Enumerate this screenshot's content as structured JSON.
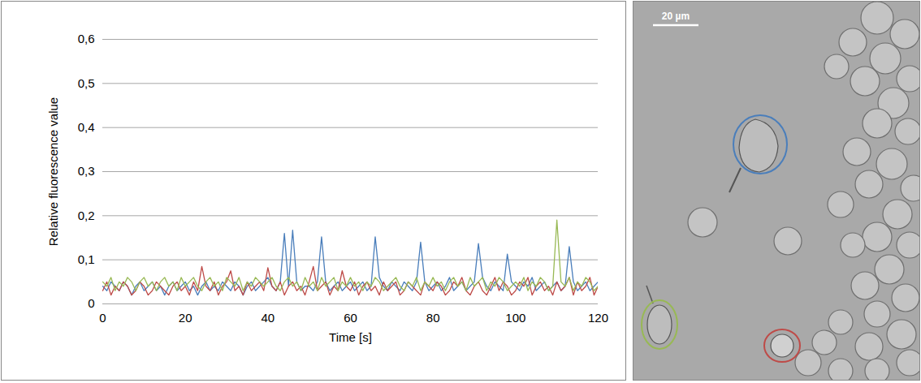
{
  "chart_data": {
    "type": "line",
    "x_label": "Time [s]",
    "y_label": "Relative fluorescence value",
    "x": [
      0,
      1,
      2,
      3,
      4,
      5,
      6,
      7,
      8,
      9,
      10,
      11,
      12,
      13,
      14,
      15,
      16,
      17,
      18,
      19,
      20,
      21,
      22,
      23,
      24,
      25,
      26,
      27,
      28,
      29,
      30,
      31,
      32,
      33,
      34,
      35,
      36,
      37,
      38,
      39,
      40,
      41,
      42,
      43,
      44,
      45,
      46,
      47,
      48,
      49,
      50,
      51,
      52,
      53,
      54,
      55,
      56,
      57,
      58,
      59,
      60,
      61,
      62,
      63,
      64,
      65,
      66,
      67,
      68,
      69,
      70,
      71,
      72,
      73,
      74,
      75,
      76,
      77,
      78,
      79,
      80,
      81,
      82,
      83,
      84,
      85,
      86,
      87,
      88,
      89,
      90,
      91,
      92,
      93,
      94,
      95,
      96,
      97,
      98,
      99,
      100,
      101,
      102,
      103,
      104,
      105,
      106,
      107,
      108,
      109,
      110,
      111,
      112,
      113,
      114,
      115,
      116,
      117,
      118,
      119,
      120
    ],
    "series": [
      {
        "color": "#4a7ebb",
        "values": [
          0.04,
          0.03,
          0.05,
          0.04,
          0.03,
          0.05,
          0.04,
          0.02,
          0.04,
          0.05,
          0.03,
          0.04,
          0.05,
          0.03,
          0.04,
          0.02,
          0.04,
          0.05,
          0.03,
          0.04,
          0.05,
          0.03,
          0.04,
          0.02,
          0.04,
          0.05,
          0.03,
          0.04,
          0.03,
          0.05,
          0.04,
          0.03,
          0.05,
          0.04,
          0.02,
          0.04,
          0.05,
          0.03,
          0.04,
          0.05,
          0.06,
          0.04,
          0.03,
          0.05,
          0.16,
          0.04,
          0.167,
          0.05,
          0.03,
          0.04,
          0.04,
          0.03,
          0.05,
          0.152,
          0.05,
          0.03,
          0.04,
          0.05,
          0.03,
          0.04,
          0.05,
          0.03,
          0.04,
          0.05,
          0.03,
          0.04,
          0.152,
          0.06,
          0.04,
          0.03,
          0.05,
          0.04,
          0.03,
          0.05,
          0.04,
          0.03,
          0.05,
          0.14,
          0.05,
          0.03,
          0.04,
          0.05,
          0.03,
          0.04,
          0.06,
          0.03,
          0.04,
          0.05,
          0.03,
          0.04,
          0.05,
          0.137,
          0.06,
          0.04,
          0.03,
          0.05,
          0.04,
          0.03,
          0.113,
          0.05,
          0.04,
          0.03,
          0.05,
          0.04,
          0.06,
          0.03,
          0.04,
          0.05,
          0.03,
          0.04,
          0.05,
          0.03,
          0.04,
          0.13,
          0.05,
          0.03,
          0.04,
          0.05,
          0.03,
          0.04,
          0.05
        ]
      },
      {
        "color": "#be4b48",
        "values": [
          0.03,
          0.05,
          0.02,
          0.04,
          0.03,
          0.05,
          0.04,
          0.02,
          0.03,
          0.05,
          0.04,
          0.02,
          0.03,
          0.05,
          0.04,
          0.03,
          0.02,
          0.04,
          0.05,
          0.03,
          0.04,
          0.02,
          0.05,
          0.03,
          0.085,
          0.04,
          0.03,
          0.05,
          0.02,
          0.04,
          0.05,
          0.075,
          0.03,
          0.04,
          0.02,
          0.05,
          0.03,
          0.04,
          0.05,
          0.03,
          0.082,
          0.04,
          0.03,
          0.05,
          0.02,
          0.04,
          0.05,
          0.03,
          0.04,
          0.02,
          0.05,
          0.085,
          0.03,
          0.04,
          0.05,
          0.02,
          0.04,
          0.03,
          0.075,
          0.04,
          0.03,
          0.05,
          0.02,
          0.04,
          0.05,
          0.03,
          0.04,
          0.02,
          0.05,
          0.03,
          0.04,
          0.05,
          0.02,
          0.03,
          0.05,
          0.04,
          0.03,
          0.02,
          0.05,
          0.04,
          0.03,
          0.05,
          0.04,
          0.02,
          0.03,
          0.05,
          0.04,
          0.06,
          0.03,
          0.02,
          0.04,
          0.05,
          0.03,
          0.02,
          0.04,
          0.06,
          0.03,
          0.05,
          0.04,
          0.02,
          0.03,
          0.05,
          0.04,
          0.06,
          0.02,
          0.04,
          0.05,
          0.03,
          0.04,
          0.02,
          0.05,
          0.03,
          0.04,
          0.06,
          0.02,
          0.05,
          0.03,
          0.04,
          0.06,
          0.02,
          0.04
        ]
      },
      {
        "color": "#98b954",
        "values": [
          0.05,
          0.04,
          0.06,
          0.03,
          0.05,
          0.04,
          0.06,
          0.05,
          0.03,
          0.05,
          0.06,
          0.04,
          0.05,
          0.03,
          0.05,
          0.06,
          0.04,
          0.05,
          0.03,
          0.06,
          0.04,
          0.05,
          0.06,
          0.04,
          0.03,
          0.05,
          0.06,
          0.04,
          0.05,
          0.03,
          0.06,
          0.05,
          0.04,
          0.06,
          0.03,
          0.05,
          0.04,
          0.06,
          0.05,
          0.04,
          0.05,
          0.06,
          0.04,
          0.03,
          0.05,
          0.06,
          0.04,
          0.05,
          0.03,
          0.06,
          0.04,
          0.05,
          0.03,
          0.06,
          0.04,
          0.05,
          0.06,
          0.03,
          0.05,
          0.04,
          0.06,
          0.04,
          0.05,
          0.03,
          0.05,
          0.04,
          0.06,
          0.05,
          0.03,
          0.04,
          0.05,
          0.06,
          0.04,
          0.03,
          0.05,
          0.04,
          0.06,
          0.03,
          0.05,
          0.04,
          0.06,
          0.04,
          0.05,
          0.03,
          0.05,
          0.06,
          0.04,
          0.05,
          0.03,
          0.06,
          0.04,
          0.05,
          0.06,
          0.03,
          0.05,
          0.04,
          0.06,
          0.05,
          0.03,
          0.04,
          0.05,
          0.04,
          0.06,
          0.03,
          0.05,
          0.04,
          0.06,
          0.05,
          0.03,
          0.04,
          0.19,
          0.05,
          0.04,
          0.06,
          0.03,
          0.05,
          0.04,
          0.06,
          0.05,
          0.03,
          0.04
        ]
      }
    ],
    "xlim": [
      0,
      120
    ],
    "xticks": [
      0,
      20,
      40,
      60,
      80,
      100,
      120
    ],
    "ylim": [
      0,
      0.6
    ],
    "yticks": [
      0,
      {
        "value": 0.1,
        "label": "0,1"
      },
      {
        "value": 0.2,
        "label": "0,2"
      },
      {
        "value": 0.3,
        "label": "0,3"
      },
      {
        "value": 0.4,
        "label": "0,4"
      },
      {
        "value": 0.5,
        "label": "0,5"
      },
      {
        "value": 0.6,
        "label": "0,6"
      }
    ],
    "grid": true
  },
  "micrograph": {
    "scale_bar": "20 µm"
  }
}
